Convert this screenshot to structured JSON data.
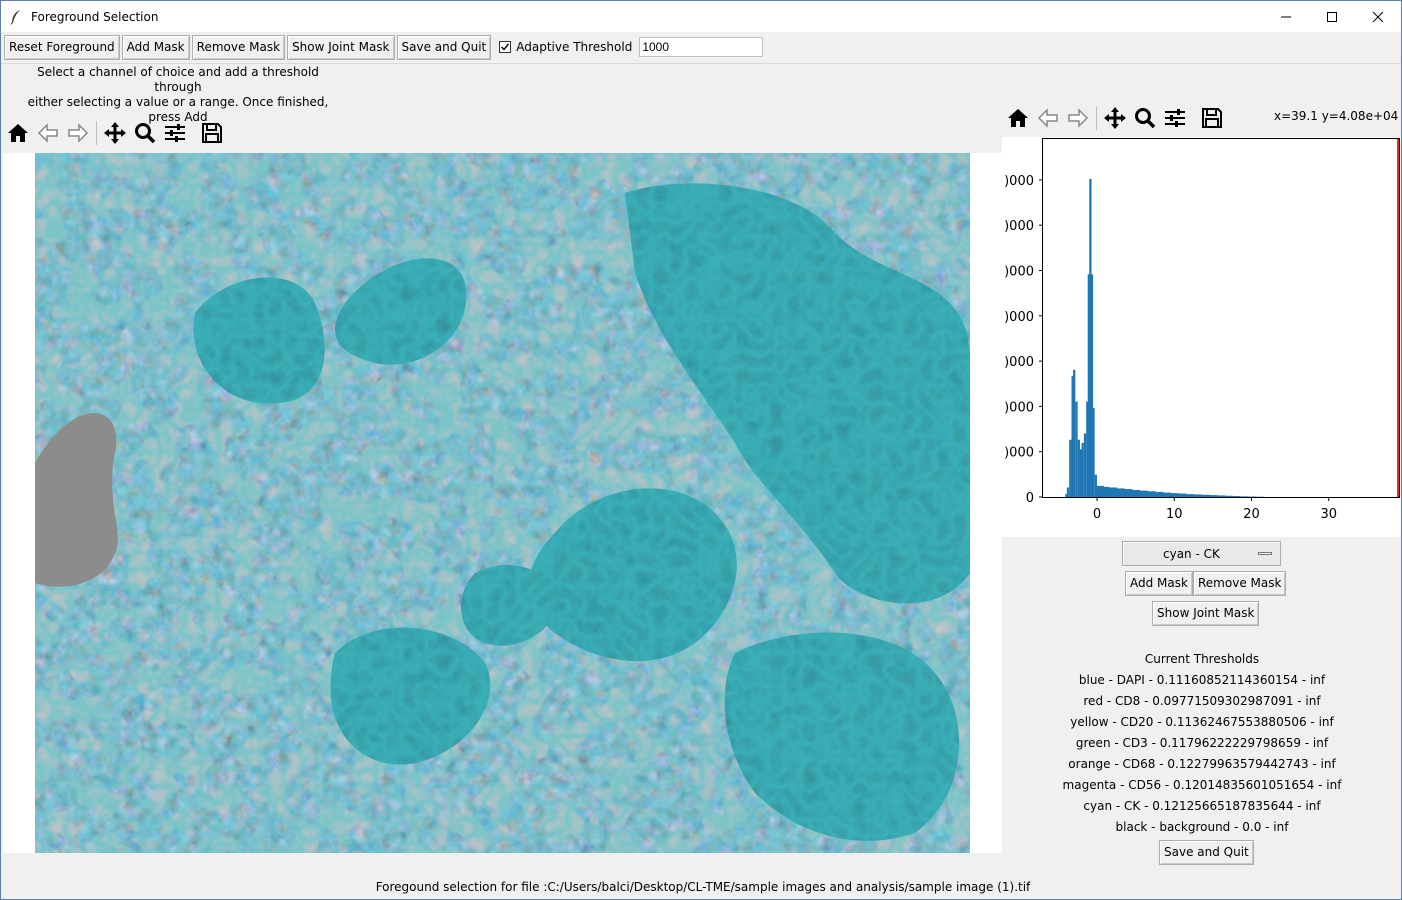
{
  "window": {
    "title": "Foreground Selection"
  },
  "toolbar": {
    "reset_label": "Reset Foreground",
    "add_mask_label": "Add Mask",
    "remove_mask_label": "Remove Mask",
    "show_joint_label": "Show Joint Mask",
    "save_quit_label": "Save and Quit",
    "adaptive_label": "Adaptive Threshold",
    "adaptive_checked": true,
    "adaptive_value": "1000"
  },
  "instructions": {
    "line1": "Select a channel of choice and add a threshold through",
    "line2": "either selecting a value or a range. Once finished, press Add"
  },
  "image_toolbar": {
    "icons": [
      "home-icon",
      "back-arrow-icon",
      "forward-arrow-icon",
      "pan-icon",
      "zoom-icon",
      "configure-icon",
      "save-icon"
    ]
  },
  "histogram_toolbar": {
    "coords": "x=39.1 y=4.08e+04"
  },
  "colors": {
    "hist_bar": "#1f77b4",
    "threshold_line": "#e8282a",
    "cyan": "#2ab6c4",
    "background_gray": "#8c8c8c"
  },
  "chart_data": {
    "type": "bar",
    "description_series": "pixel intensity histogram",
    "x_ticks": [
      "0",
      "10",
      "20",
      "30"
    ],
    "y_ticks": [
      "0",
      ")000",
      ")000",
      ")000",
      ")000",
      ")000",
      ")000",
      ")000"
    ],
    "xlim": [
      -7,
      39.1
    ],
    "threshold_x": 39.1,
    "bins": [
      {
        "x": -4.0,
        "y": 0.01
      },
      {
        "x": -3.8,
        "y": 0.03
      },
      {
        "x": -3.5,
        "y": 0.18
      },
      {
        "x": -3.2,
        "y": 0.38
      },
      {
        "x": -3.0,
        "y": 0.4
      },
      {
        "x": -2.7,
        "y": 0.3
      },
      {
        "x": -2.4,
        "y": 0.18
      },
      {
        "x": -2.1,
        "y": 0.15
      },
      {
        "x": -1.9,
        "y": 0.17
      },
      {
        "x": -1.6,
        "y": 0.2
      },
      {
        "x": -1.3,
        "y": 0.3
      },
      {
        "x": -1.1,
        "y": 0.7
      },
      {
        "x": -0.9,
        "y": 1.0
      },
      {
        "x": -0.7,
        "y": 0.7
      },
      {
        "x": -0.5,
        "y": 0.28
      },
      {
        "x": -0.2,
        "y": 0.07
      },
      {
        "x": 0.3,
        "y": 0.035
      },
      {
        "x": 1,
        "y": 0.032
      },
      {
        "x": 2,
        "y": 0.03
      },
      {
        "x": 3,
        "y": 0.027
      },
      {
        "x": 4,
        "y": 0.025
      },
      {
        "x": 5,
        "y": 0.022
      },
      {
        "x": 6,
        "y": 0.02
      },
      {
        "x": 7,
        "y": 0.018
      },
      {
        "x": 8,
        "y": 0.016
      },
      {
        "x": 9,
        "y": 0.014
      },
      {
        "x": 10,
        "y": 0.012
      },
      {
        "x": 11,
        "y": 0.011
      },
      {
        "x": 12,
        "y": 0.009
      },
      {
        "x": 13,
        "y": 0.008
      },
      {
        "x": 14,
        "y": 0.007
      },
      {
        "x": 15,
        "y": 0.006
      },
      {
        "x": 16,
        "y": 0.005
      },
      {
        "x": 17,
        "y": 0.004
      },
      {
        "x": 18,
        "y": 0.003
      },
      {
        "x": 19,
        "y": 0.002
      },
      {
        "x": 20,
        "y": 0.0015
      },
      {
        "x": 21,
        "y": 0.001
      }
    ]
  },
  "channel_select": {
    "value": "cyan - CK"
  },
  "side_panel": {
    "add_mask_label": "Add Mask",
    "remove_mask_label": "Remove Mask",
    "show_joint_label": "Show Joint Mask",
    "thresholds_title": "Current Thresholds",
    "thresholds": [
      "blue - DAPI   -   0.11160852114360154 - inf",
      "red - CD8   -   0.09771509302987091 - inf",
      "yellow - CD20   -   0.11362467553880506 - inf",
      "green - CD3   -   0.11796222229798659 - inf",
      "orange - CD68   -   0.12279963579442743 - inf",
      "magenta - CD56   -   0.12014835601051654 - inf",
      "cyan - CK   -   0.12125665187835644 - inf",
      "black - background   -   0.0 - inf"
    ],
    "save_quit_label": "Save and Quit"
  },
  "footer": {
    "text": "Foregound selection for file :C:/Users/balci/Desktop/CL-TME/sample images and analysis/sample image (1).tif"
  }
}
